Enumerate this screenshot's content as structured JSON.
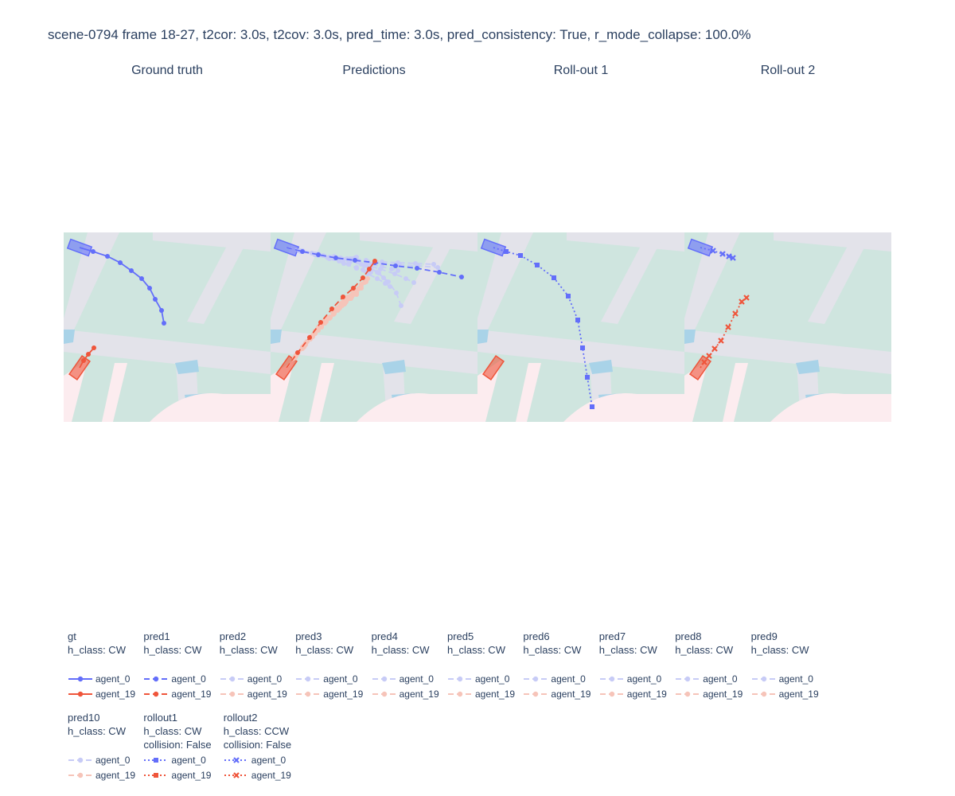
{
  "title": "scene-0794 frame 18-27, t2cor: 3.0s, t2cov: 3.0s, pred_time: 3.0s, pred_consistency: True, r_mode_collapse: 100.0%",
  "colors": {
    "agent_0": "#636efa",
    "agent_19": "#ef553b",
    "agent_0_faint": "#c7cbf6",
    "agent_19_faint": "#f6c4b9",
    "map_ground": "#cfe5df",
    "map_road": "#e3e3ea",
    "map_crossing": "#a9d3e8",
    "map_walkway": "#fcecef"
  },
  "chart_data": {
    "type": "scatter",
    "panels": [
      "Ground truth",
      "Predictions",
      "Roll-out 1",
      "Roll-out 2"
    ],
    "agents": [
      "agent_0",
      "agent_19"
    ],
    "legend_groups": [
      {
        "name": "gt",
        "info": [
          "h_class: CW"
        ],
        "dash": "solid",
        "symbol": "circle",
        "faint": false
      },
      {
        "name": "pred1",
        "info": [
          "h_class: CW"
        ],
        "dash": "dash",
        "symbol": "circle",
        "faint": false
      },
      {
        "name": "pred2",
        "info": [
          "h_class: CW"
        ],
        "dash": "dash",
        "symbol": "circle",
        "faint": true
      },
      {
        "name": "pred3",
        "info": [
          "h_class: CW"
        ],
        "dash": "dash",
        "symbol": "circle",
        "faint": true
      },
      {
        "name": "pred4",
        "info": [
          "h_class: CW"
        ],
        "dash": "dash",
        "symbol": "circle",
        "faint": true
      },
      {
        "name": "pred5",
        "info": [
          "h_class: CW"
        ],
        "dash": "dash",
        "symbol": "circle",
        "faint": true
      },
      {
        "name": "pred6",
        "info": [
          "h_class: CW"
        ],
        "dash": "dash",
        "symbol": "circle",
        "faint": true
      },
      {
        "name": "pred7",
        "info": [
          "h_class: CW"
        ],
        "dash": "dash",
        "symbol": "circle",
        "faint": true
      },
      {
        "name": "pred8",
        "info": [
          "h_class: CW"
        ],
        "dash": "dash",
        "symbol": "circle",
        "faint": true
      },
      {
        "name": "pred9",
        "info": [
          "h_class: CW"
        ],
        "dash": "dash",
        "symbol": "circle",
        "faint": true
      },
      {
        "name": "pred10",
        "info": [
          "h_class: CW"
        ],
        "dash": "dash",
        "symbol": "circle",
        "faint": true
      },
      {
        "name": "rollout1",
        "info": [
          "h_class: CW",
          "collision: False"
        ],
        "dash": "dot",
        "symbol": "square",
        "faint": false
      },
      {
        "name": "rollout2",
        "info": [
          "h_class: CCW",
          "collision: False"
        ],
        "dash": "dot",
        "symbol": "x",
        "faint": false
      }
    ],
    "series": [
      {
        "panel": 0,
        "group": "gt",
        "agent": "agent_0",
        "x": [
          20,
          37,
          55,
          71,
          85,
          98,
          108,
          115,
          123,
          126
        ],
        "y": [
          19,
          24,
          30,
          38,
          48,
          58,
          70,
          84,
          98,
          114
        ]
      },
      {
        "panel": 0,
        "group": "gt",
        "agent": "agent_19",
        "x": [
          20,
          25,
          31,
          38
        ],
        "y": [
          170,
          161,
          153,
          145
        ]
      },
      {
        "panel": 1,
        "group": "pred1",
        "agent": "agent_0",
        "x": [
          20,
          40,
          60,
          82,
          106,
          131,
          157,
          184,
          212,
          240
        ],
        "y": [
          19,
          24,
          28,
          32,
          35,
          38,
          42,
          45,
          50,
          56
        ]
      },
      {
        "panel": 1,
        "group": "pred1",
        "agent": "agent_19",
        "x": [
          20,
          34,
          49,
          63,
          77,
          91,
          104,
          116,
          124,
          131
        ],
        "y": [
          170,
          151,
          132,
          113,
          96,
          81,
          70,
          57,
          46,
          36
        ]
      },
      {
        "panel": 1,
        "group": "pred2",
        "agent": "agent_0",
        "x": [
          20,
          40,
          60,
          80,
          100,
          118,
          134,
          148,
          158,
          164
        ],
        "y": [
          19,
          24,
          28,
          32,
          36,
          42,
          50,
          62,
          76,
          92
        ]
      },
      {
        "panel": 1,
        "group": "pred3",
        "agent": "agent_0",
        "x": [
          20,
          40,
          60,
          80,
          100,
          120,
          140,
          160,
          182,
          205
        ],
        "y": [
          19,
          23,
          27,
          30,
          33,
          35,
          37,
          38,
          39,
          40
        ]
      },
      {
        "panel": 1,
        "group": "pred4",
        "agent": "agent_0",
        "x": [
          20,
          38,
          56,
          74,
          92,
          108,
          122,
          134,
          144,
          150
        ],
        "y": [
          19,
          24,
          28,
          33,
          39,
          45,
          52,
          58,
          64,
          68
        ]
      },
      {
        "panel": 1,
        "group": "pred5",
        "agent": "agent_0",
        "x": [
          20,
          38,
          56,
          72,
          86,
          98,
          108,
          116,
          122,
          126
        ],
        "y": [
          19,
          24,
          28,
          32,
          36,
          40,
          44,
          47,
          49,
          50
        ]
      },
      {
        "panel": 1,
        "group": "pred6",
        "agent": "agent_0",
        "x": [
          20,
          40,
          60,
          80,
          100,
          120,
          140,
          162,
          185,
          210
        ],
        "y": [
          19,
          23,
          27,
          31,
          34,
          37,
          39,
          41,
          42,
          44
        ]
      },
      {
        "panel": 1,
        "group": "pred7",
        "agent": "agent_0",
        "x": [
          20,
          40,
          60,
          80,
          98,
          114,
          126,
          136,
          142,
          146
        ],
        "y": [
          19,
          24,
          28,
          32,
          36,
          40,
          45,
          51,
          57,
          62
        ]
      },
      {
        "panel": 1,
        "group": "pred8",
        "agent": "agent_0",
        "x": [
          20,
          36,
          52,
          66,
          78,
          88,
          96,
          102,
          106,
          108
        ],
        "y": [
          19,
          23,
          26,
          29,
          31,
          32,
          33,
          33,
          32,
          31
        ]
      },
      {
        "panel": 1,
        "group": "pred9",
        "agent": "agent_0",
        "x": [
          20,
          40,
          60,
          80,
          100,
          120,
          138,
          156,
          170,
          180
        ],
        "y": [
          19,
          24,
          29,
          33,
          37,
          41,
          46,
          52,
          58,
          63
        ]
      },
      {
        "panel": 1,
        "group": "pred10",
        "agent": "agent_0",
        "x": [
          20,
          38,
          56,
          74,
          92,
          110,
          126,
          140,
          152,
          160
        ],
        "y": [
          19,
          23,
          27,
          31,
          34,
          37,
          40,
          43,
          46,
          48
        ]
      },
      {
        "panel": 1,
        "group": "pred2",
        "agent": "agent_19",
        "x": [
          20,
          32,
          44,
          56,
          68,
          80,
          92,
          104,
          114,
          122
        ],
        "y": [
          170,
          154,
          139,
          124,
          110,
          97,
          85,
          74,
          65,
          58
        ]
      },
      {
        "panel": 1,
        "group": "pred3",
        "agent": "agent_19",
        "x": [
          20,
          33,
          46,
          59,
          72,
          84,
          96,
          106,
          114,
          120
        ],
        "y": [
          170,
          153,
          137,
          122,
          108,
          95,
          84,
          74,
          67,
          62
        ]
      },
      {
        "panel": 1,
        "group": "pred4",
        "agent": "agent_19",
        "x": [
          20,
          31,
          42,
          53,
          64,
          75,
          85,
          94,
          102,
          108
        ],
        "y": [
          170,
          156,
          142,
          129,
          117,
          106,
          96,
          88,
          81,
          76
        ]
      },
      {
        "panel": 1,
        "group": "pred5",
        "agent": "agent_19",
        "x": [
          20,
          30,
          40,
          50,
          60,
          70,
          80,
          89,
          97,
          104
        ],
        "y": [
          170,
          157,
          144,
          131,
          119,
          108,
          98,
          89,
          81,
          74
        ]
      },
      {
        "panel": 1,
        "group": "pred6",
        "agent": "agent_19",
        "x": [
          20,
          32,
          44,
          56,
          68,
          80,
          90,
          100,
          108,
          114
        ],
        "y": [
          170,
          155,
          141,
          127,
          114,
          102,
          92,
          83,
          76,
          70
        ]
      },
      {
        "panel": 1,
        "group": "pred7",
        "agent": "agent_19",
        "x": [
          20,
          31,
          42,
          53,
          64,
          74,
          84,
          93,
          101,
          108
        ],
        "y": [
          170,
          157,
          144,
          131,
          119,
          108,
          98,
          90,
          83,
          78
        ]
      },
      {
        "panel": 1,
        "group": "pred8",
        "agent": "agent_19",
        "x": [
          20,
          30,
          40,
          50,
          60,
          70,
          79,
          87,
          94,
          100
        ],
        "y": [
          170,
          158,
          146,
          134,
          123,
          112,
          103,
          95,
          88,
          83
        ]
      },
      {
        "panel": 1,
        "group": "pred9",
        "agent": "agent_19",
        "x": [
          20,
          32,
          44,
          56,
          68,
          80,
          91,
          101,
          110,
          118
        ],
        "y": [
          170,
          155,
          141,
          127,
          114,
          101,
          90,
          80,
          71,
          63
        ]
      },
      {
        "panel": 1,
        "group": "pred10",
        "agent": "agent_19",
        "x": [
          20,
          31,
          42,
          53,
          64,
          75,
          85,
          95,
          104,
          112
        ],
        "y": [
          170,
          156,
          143,
          130,
          118,
          107,
          97,
          87,
          78,
          70
        ]
      },
      {
        "panel": 2,
        "group": "rollout1",
        "agent": "agent_0",
        "x": [
          20,
          36,
          54,
          75,
          96,
          114,
          126,
          132,
          138,
          144
        ],
        "y": [
          19,
          24,
          29,
          41,
          57,
          80,
          110,
          145,
          182,
          219
        ]
      },
      {
        "panel": 3,
        "group": "rollout2",
        "agent": "agent_0",
        "x": [
          20,
          36,
          48,
          56,
          61
        ],
        "y": [
          19,
          23,
          27,
          30,
          32
        ]
      },
      {
        "panel": 3,
        "group": "rollout2",
        "agent": "agent_19",
        "x": [
          20,
          25,
          31,
          38,
          46,
          55,
          64,
          72,
          78
        ],
        "y": [
          170,
          163,
          155,
          146,
          136,
          119,
          102,
          87,
          82
        ]
      }
    ],
    "vehicles": [
      {
        "panel": 0,
        "agent": "agent_0",
        "x": 20,
        "y": 19,
        "heading_deg": 20
      },
      {
        "panel": 0,
        "agent": "agent_19",
        "x": 20,
        "y": 170,
        "heading_deg": -55
      },
      {
        "panel": 1,
        "agent": "agent_0",
        "x": 20,
        "y": 19,
        "heading_deg": 20
      },
      {
        "panel": 1,
        "agent": "agent_19",
        "x": 20,
        "y": 170,
        "heading_deg": -55
      },
      {
        "panel": 2,
        "agent": "agent_0",
        "x": 20,
        "y": 19,
        "heading_deg": 20
      },
      {
        "panel": 2,
        "agent": "agent_19",
        "x": 20,
        "y": 170,
        "heading_deg": -55
      },
      {
        "panel": 3,
        "agent": "agent_0",
        "x": 20,
        "y": 19,
        "heading_deg": 20
      },
      {
        "panel": 3,
        "agent": "agent_19",
        "x": 20,
        "y": 170,
        "heading_deg": -55
      }
    ],
    "grid": false,
    "legend_position": "bottom"
  }
}
